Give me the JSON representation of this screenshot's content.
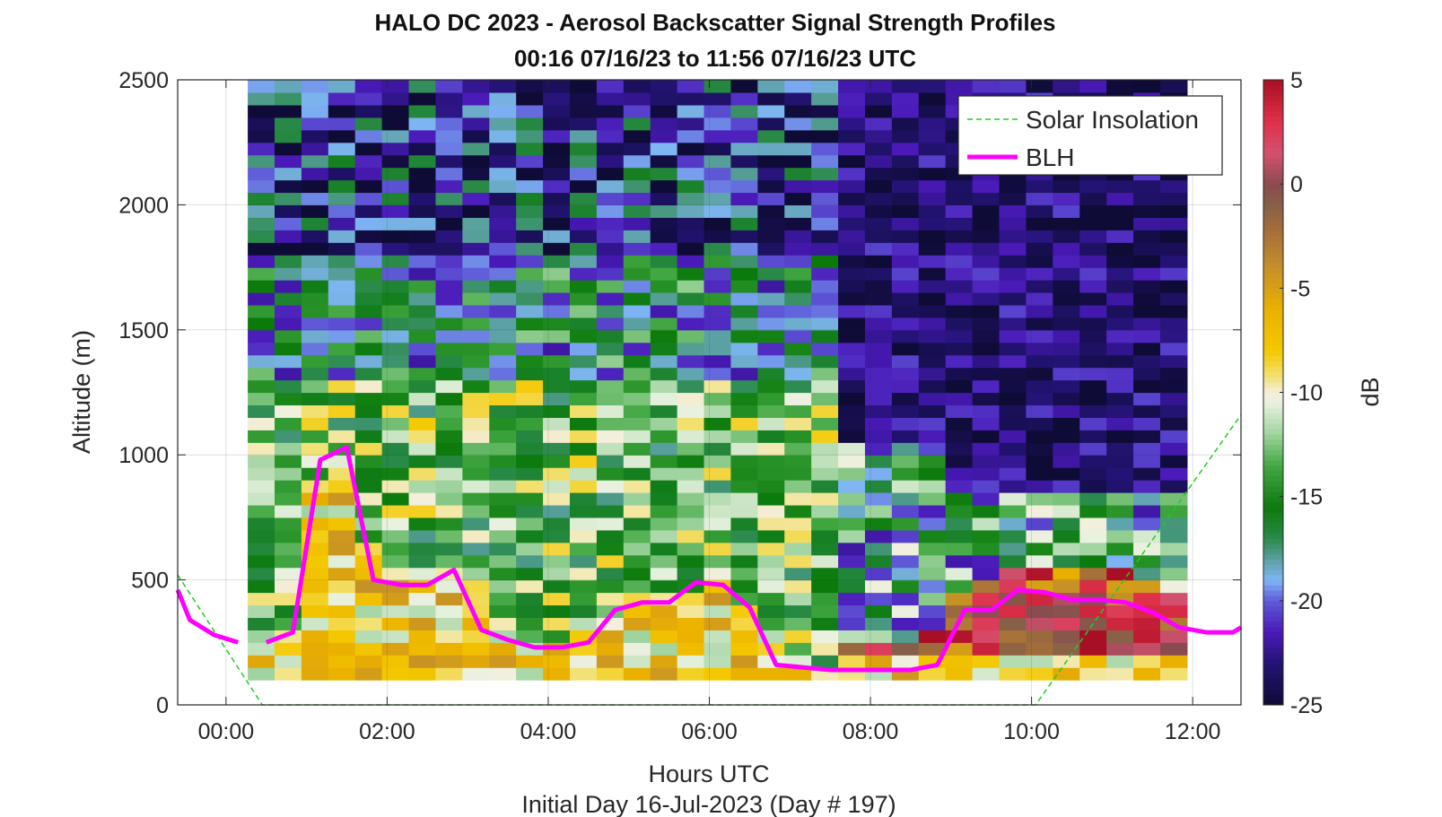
{
  "chart_data": {
    "type": "heatmap",
    "title": "HALO DC 2023 - Aerosol Backscatter Signal Strength Profiles",
    "subtitle": "00:16 07/16/23 to 11:56 07/16/23  UTC",
    "xlabel": "Hours UTC",
    "footer": "Initial Day 16-Jul-2023 (Day # 197)",
    "ylabel": "Altitude (m)",
    "colorbar_label": "dB",
    "xlim": [
      -0.6,
      12.6
    ],
    "ylim": [
      0,
      2500
    ],
    "clim": [
      -25,
      5
    ],
    "grid": true,
    "legend_placement": "top-right",
    "x_ticks": [
      {
        "value": 0,
        "label": "00:00"
      },
      {
        "value": 2,
        "label": "02:00"
      },
      {
        "value": 4,
        "label": "04:00"
      },
      {
        "value": 6,
        "label": "06:00"
      },
      {
        "value": 8,
        "label": "08:00"
      },
      {
        "value": 10,
        "label": "10:00"
      },
      {
        "value": 12,
        "label": "12:00"
      }
    ],
    "y_ticks": [
      {
        "value": 0,
        "label": "0"
      },
      {
        "value": 500,
        "label": "500"
      },
      {
        "value": 1000,
        "label": "1000"
      },
      {
        "value": 1500,
        "label": "1500"
      },
      {
        "value": 2000,
        "label": "2000"
      },
      {
        "value": 2500,
        "label": "2500"
      }
    ],
    "colorbar_ticks": [
      {
        "value": 5,
        "label": "5"
      },
      {
        "value": 0,
        "label": "0"
      },
      {
        "value": -5,
        "label": "-5"
      },
      {
        "value": -10,
        "label": "-10"
      },
      {
        "value": -15,
        "label": "-15"
      },
      {
        "value": -20,
        "label": "-20"
      },
      {
        "value": -25,
        "label": "-25"
      }
    ],
    "heatmap": {
      "x_start_hours": 0.27,
      "x_end_hours": 11.93,
      "profile_count": 35,
      "y_bottom_m": 100,
      "y_top_m": 2500,
      "gate_spacing_m": 50
    },
    "series": [
      {
        "name": "Solar Insolation",
        "style": "dashed",
        "color": "#22cc22",
        "x": [
          -0.6,
          0.45,
          10.05,
          12.6
        ],
        "y": [
          520,
          0,
          0,
          1160
        ]
      },
      {
        "name": "BLH",
        "style": "solid",
        "color": "#ff00ff",
        "segments": [
          {
            "x": [
              -0.6,
              -0.45,
              -0.15,
              0.15
            ],
            "y": [
              460,
              340,
              280,
              250
            ]
          },
          {
            "x": [
              0.5,
              0.83,
              1.17,
              1.5,
              1.83,
              2.17,
              2.5,
              2.83,
              3.17,
              3.5,
              3.83,
              4.17,
              4.5,
              4.83,
              5.17,
              5.5,
              5.83,
              6.17,
              6.5,
              6.83,
              7.17,
              7.5,
              7.83,
              8.17,
              8.5,
              8.83,
              9.17,
              9.5,
              9.83,
              10.17,
              10.5,
              10.83,
              11.17,
              11.5,
              11.83,
              12.17,
              12.5,
              12.6
            ],
            "y": [
              250,
              290,
              980,
              1030,
              500,
              480,
              480,
              540,
              300,
              260,
              230,
              230,
              250,
              380,
              410,
              410,
              490,
              480,
              390,
              160,
              150,
              140,
              140,
              140,
              140,
              160,
              380,
              380,
              460,
              450,
              420,
              420,
              410,
              370,
              310,
              290,
              290,
              310
            ]
          }
        ]
      }
    ]
  }
}
